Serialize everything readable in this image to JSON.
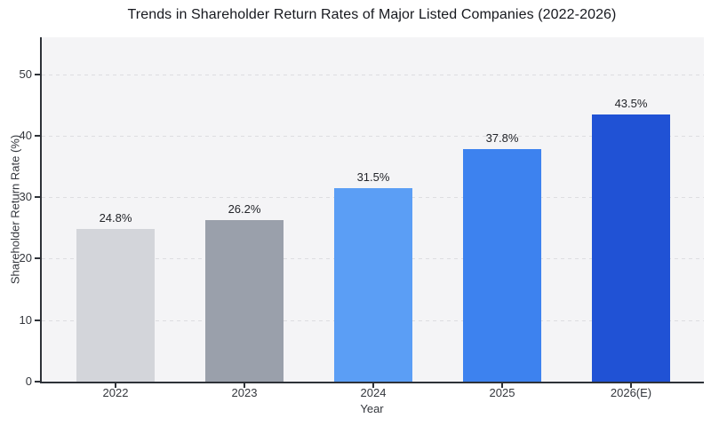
{
  "title": "Trends in Shareholder Return Rates of Major Listed Companies (2022-2026)",
  "chart_data": {
    "type": "bar",
    "title": "Trends in Shareholder Return Rates of Major Listed Companies (2022-2026)",
    "categories": [
      "2022",
      "2023",
      "2024",
      "2025",
      "2026(E)"
    ],
    "values": [
      24.8,
      26.2,
      31.5,
      37.8,
      43.5
    ],
    "value_labels": [
      "24.8%",
      "26.2%",
      "31.5%",
      "37.8%",
      "43.5%"
    ],
    "bar_colors": [
      "#d3d5da",
      "#9aa0ab",
      "#5b9ef5",
      "#3d82ef",
      "#2052d5"
    ],
    "xlabel": "Year",
    "ylabel": "Shareholder Return Rate (%)",
    "ylim": [
      0,
      56
    ],
    "yticks": [
      0,
      10,
      20,
      30,
      40,
      50
    ],
    "grid": true,
    "grid_style": "dashed",
    "legend": "none",
    "colors": {
      "figure_background": "#ffffff",
      "plot_background": "#f4f4f6",
      "grid_color": "#dddde1",
      "axis_spine_color": "#2e3238",
      "tick_label_color": "#33363c",
      "title_color": "#16181e",
      "value_label_color": "#222429"
    }
  }
}
